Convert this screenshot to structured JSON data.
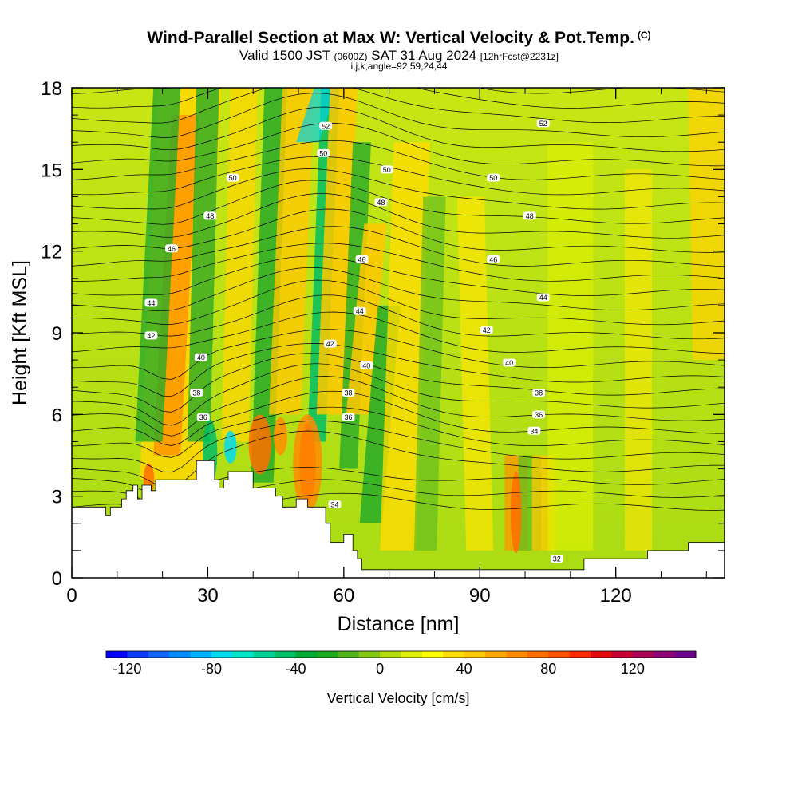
{
  "header": {
    "title": "Wind-Parallel Section at Max W: Vertical Velocity & Pot.Temp.",
    "title_mark": "(C)",
    "valid_prefix": "Valid 1500 JST",
    "valid_utc": "(0600Z)",
    "valid_date": "SAT 31 Aug 2024",
    "forecast": "[12hrFcst@2231z]",
    "indices": "i,j,k,angle=92,59,24,44"
  },
  "chart_data": {
    "type": "contour",
    "xlabel": "Distance [nm]",
    "ylabel": "Height [Kft MSL]",
    "xlim": [
      0,
      144
    ],
    "ylim": [
      0,
      18
    ],
    "xticks": [
      0,
      30,
      60,
      90,
      120
    ],
    "yticks": [
      0,
      3,
      6,
      9,
      12,
      15,
      18
    ],
    "colorbar": {
      "label": "Vertical Velocity [cm/s]",
      "range": [
        -130,
        150
      ],
      "step": 10,
      "tick_values": [
        -120,
        -80,
        -40,
        0,
        40,
        80,
        120
      ],
      "tick_labels": [
        "-120",
        "-80",
        "-40",
        "0",
        "40",
        "80",
        "120"
      ],
      "colors": [
        "#0000ff",
        "#0a3cff",
        "#1464ff",
        "#008cff",
        "#00b4ff",
        "#00dcf0",
        "#00e6c8",
        "#00d296",
        "#00be64",
        "#00aa32",
        "#1eaa1e",
        "#50b41e",
        "#82c814",
        "#b4dc0a",
        "#dcf000",
        "#ffff00",
        "#ffdc00",
        "#ffc800",
        "#ffaa00",
        "#ff8c00",
        "#ff6e00",
        "#ff5000",
        "#ff2800",
        "#e60a0a",
        "#c80032",
        "#aa0055",
        "#8c0078",
        "#6e008c"
      ]
    },
    "theta_labels": [
      {
        "label": "52",
        "x": 56,
        "y": 16.6
      },
      {
        "label": "52",
        "x": 104,
        "y": 16.7
      },
      {
        "label": "50",
        "x": 55.5,
        "y": 15.6
      },
      {
        "label": "50",
        "x": 69.5,
        "y": 15.0
      },
      {
        "label": "50",
        "x": 93,
        "y": 14.7
      },
      {
        "label": "50",
        "x": 35.5,
        "y": 14.7
      },
      {
        "label": "48",
        "x": 68.2,
        "y": 13.8
      },
      {
        "label": "48",
        "x": 30.5,
        "y": 13.3
      },
      {
        "label": "48",
        "x": 101,
        "y": 13.3
      },
      {
        "label": "46",
        "x": 22,
        "y": 12.1
      },
      {
        "label": "46",
        "x": 64,
        "y": 11.7
      },
      {
        "label": "46",
        "x": 93,
        "y": 11.7
      },
      {
        "label": "44",
        "x": 17.5,
        "y": 10.1
      },
      {
        "label": "44",
        "x": 63.5,
        "y": 9.8
      },
      {
        "label": "44",
        "x": 104,
        "y": 10.3
      },
      {
        "label": "42",
        "x": 17.5,
        "y": 8.9
      },
      {
        "label": "42",
        "x": 57,
        "y": 8.6
      },
      {
        "label": "42",
        "x": 91.5,
        "y": 9.1
      },
      {
        "label": "40",
        "x": 28.5,
        "y": 8.1
      },
      {
        "label": "40",
        "x": 65,
        "y": 7.8
      },
      {
        "label": "40",
        "x": 96.5,
        "y": 7.9
      },
      {
        "label": "38",
        "x": 27.5,
        "y": 6.8
      },
      {
        "label": "38",
        "x": 61,
        "y": 6.8
      },
      {
        "label": "38",
        "x": 103,
        "y": 6.8
      },
      {
        "label": "36",
        "x": 29,
        "y": 5.9
      },
      {
        "label": "36",
        "x": 61,
        "y": 5.9
      },
      {
        "label": "36",
        "x": 103,
        "y": 6.0
      },
      {
        "label": "34",
        "x": 102,
        "y": 5.4
      },
      {
        "label": "34",
        "x": 58,
        "y": 2.7
      },
      {
        "label": "32",
        "x": 107,
        "y": 0.7
      }
    ],
    "terrain": [
      [
        0,
        2.6
      ],
      [
        7.5,
        2.6
      ],
      [
        7.5,
        2.3
      ],
      [
        8.5,
        2.3
      ],
      [
        8.5,
        2.6
      ],
      [
        11,
        2.6
      ],
      [
        11,
        2.9
      ],
      [
        12,
        2.9
      ],
      [
        12,
        3.2
      ],
      [
        13.5,
        3.2
      ],
      [
        13.5,
        3.4
      ],
      [
        14.5,
        3.4
      ],
      [
        14.5,
        2.9
      ],
      [
        15.5,
        2.9
      ],
      [
        15.5,
        3.4
      ],
      [
        17.5,
        3.4
      ],
      [
        17.5,
        3.2
      ],
      [
        18.5,
        3.2
      ],
      [
        18.5,
        3.6
      ],
      [
        27.5,
        3.6
      ],
      [
        27.5,
        4.3
      ],
      [
        31.5,
        4.3
      ],
      [
        31.5,
        3.6
      ],
      [
        32.5,
        3.6
      ],
      [
        32.5,
        3.3
      ],
      [
        33.5,
        3.3
      ],
      [
        33.5,
        3.6
      ],
      [
        34.5,
        3.6
      ],
      [
        34.5,
        3.9
      ],
      [
        40,
        3.9
      ],
      [
        40,
        3.3
      ],
      [
        45,
        3.3
      ],
      [
        45,
        3.0
      ],
      [
        46.5,
        3.0
      ],
      [
        46.5,
        2.6
      ],
      [
        49.5,
        2.6
      ],
      [
        49.5,
        2.9
      ],
      [
        52,
        2.9
      ],
      [
        52,
        2.6
      ],
      [
        56,
        2.6
      ],
      [
        56,
        2.0
      ],
      [
        57,
        2.0
      ],
      [
        57,
        1.3
      ],
      [
        60,
        1.3
      ],
      [
        60,
        1.6
      ],
      [
        62,
        1.6
      ],
      [
        62,
        1.0
      ],
      [
        63,
        1.0
      ],
      [
        63,
        0.7
      ],
      [
        64,
        0.7
      ],
      [
        64,
        0.3
      ],
      [
        113,
        0.3
      ],
      [
        113,
        0.7
      ],
      [
        127,
        0.7
      ],
      [
        127,
        1.0
      ],
      [
        136,
        1.0
      ],
      [
        136,
        1.3
      ],
      [
        144,
        1.3
      ],
      [
        144,
        0
      ],
      [
        0,
        0
      ]
    ]
  }
}
